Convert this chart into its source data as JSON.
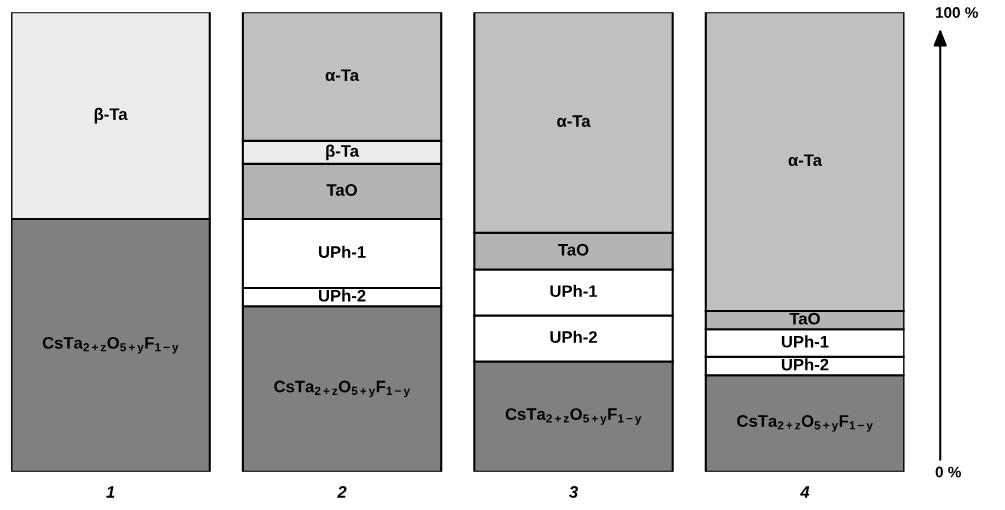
{
  "chart_data": {
    "type": "bar",
    "stacked": true,
    "categories": [
      "1",
      "2",
      "3",
      "4"
    ],
    "series": [
      {
        "name": "CsTa$_{2+z}$O$_{5+y}$F$_{1−y}$",
        "color": "#808080",
        "values": [
          55,
          36,
          24,
          21
        ]
      },
      {
        "name": "UPh-2",
        "color": "#ffffff",
        "values": [
          null,
          4,
          10,
          4
        ]
      },
      {
        "name": "UPh-1",
        "color": "#ffffff",
        "values": [
          null,
          15,
          10,
          6
        ]
      },
      {
        "name": "TaO",
        "color": "#b4b4b4",
        "values": [
          null,
          12,
          8,
          4
        ]
      },
      {
        "name": "β-Ta",
        "color": "#ececec",
        "values": [
          45,
          5,
          null,
          null
        ]
      },
      {
        "name": "α-Ta",
        "color": "#c0c0c0",
        "values": [
          null,
          28,
          48,
          65
        ]
      }
    ],
    "ylim": [
      0,
      100
    ],
    "yticks": [
      {
        "value": 0,
        "label": "0 %"
      },
      {
        "value": 100,
        "label": "100 %"
      }
    ]
  }
}
